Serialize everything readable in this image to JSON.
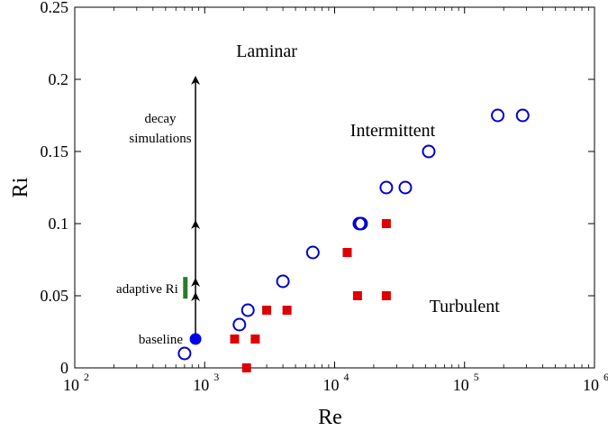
{
  "chart_data": {
    "type": "scatter",
    "title": "",
    "xlabel": "Re",
    "ylabel": "Ri",
    "xscale": "log",
    "xlim": [
      100,
      1000000
    ],
    "ylim": [
      0,
      0.25
    ],
    "grid": false,
    "x_ticks": [
      {
        "base": "10",
        "exp": "2",
        "value": 100
      },
      {
        "base": "10",
        "exp": "3",
        "value": 1000
      },
      {
        "base": "10",
        "exp": "4",
        "value": 10000
      },
      {
        "base": "10",
        "exp": "5",
        "value": 100000
      },
      {
        "base": "10",
        "exp": "6",
        "value": 1000000
      }
    ],
    "y_ticks": [
      {
        "label": "0",
        "value": 0
      },
      {
        "label": "0.05",
        "value": 0.05
      },
      {
        "label": "0.1",
        "value": 0.1
      },
      {
        "label": "0.15",
        "value": 0.15
      },
      {
        "label": "0.2",
        "value": 0.2
      },
      {
        "label": "0.25",
        "value": 0.25
      }
    ],
    "series": [
      {
        "marker": "open-circle",
        "color": "#0000cc",
        "points": [
          [
            700,
            0.01
          ],
          [
            1850,
            0.03
          ],
          [
            2150,
            0.04
          ],
          [
            4000,
            0.06
          ],
          [
            6800,
            0.08
          ],
          [
            15500,
            0.1
          ],
          [
            16000,
            0.1
          ],
          [
            25000,
            0.125
          ],
          [
            35000,
            0.125
          ],
          [
            53000,
            0.15
          ],
          [
            180000,
            0.175
          ],
          [
            280000,
            0.175
          ]
        ]
      },
      {
        "marker": "filled-square",
        "color": "#dd0000",
        "points": [
          [
            2100,
            0.0
          ],
          [
            1700,
            0.02
          ],
          [
            2450,
            0.02
          ],
          [
            3000,
            0.04
          ],
          [
            4300,
            0.04
          ],
          [
            12500,
            0.08
          ],
          [
            15000,
            0.05
          ],
          [
            25000,
            0.05
          ],
          [
            25000,
            0.1
          ]
        ]
      },
      {
        "marker": "filled-circle",
        "color": "#0000ee",
        "points": [
          [
            850,
            0.02
          ]
        ]
      }
    ],
    "annotations": {
      "regions": [
        {
          "text": "Laminar",
          "x": 3000,
          "y": 0.22
        },
        {
          "text": "Intermittent",
          "x": 28000,
          "y": 0.165
        },
        {
          "text": "Turbulent",
          "x": 100000,
          "y": 0.043
        }
      ],
      "arrow_x": 850,
      "arrow_segments": [
        [
          0.02,
          0.05
        ],
        [
          0.05,
          0.06
        ],
        [
          0.06,
          0.1
        ],
        [
          0.1,
          0.2
        ]
      ],
      "adaptive_bar": {
        "x": 710,
        "y_from": 0.048,
        "y_to": 0.063,
        "color": "#2a7a2a"
      },
      "labels": {
        "baseline": "baseline",
        "adaptive": "adaptive Ri",
        "decay_line1": "decay",
        "decay_line2": "simulations"
      }
    }
  }
}
